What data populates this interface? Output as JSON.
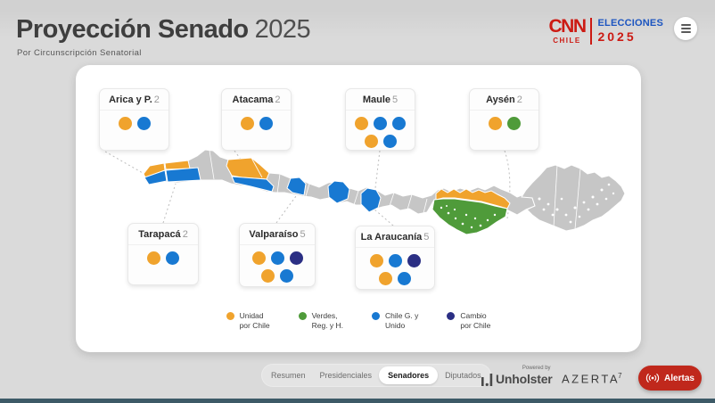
{
  "header": {
    "title": "Proyección Senado",
    "year": "2025",
    "subtitle": "Por Circunscripción Senatorial",
    "brand": {
      "cnn": "CNN",
      "chile": "CHILE",
      "elecciones": "ELECCIONES",
      "year": "2025"
    }
  },
  "regions": [
    {
      "name": "Arica y P.",
      "seats": "2",
      "dots": [
        "orange",
        "blue"
      ]
    },
    {
      "name": "Atacama",
      "seats": "2",
      "dots": [
        "orange",
        "blue"
      ]
    },
    {
      "name": "Maule",
      "seats": "5",
      "dots": [
        "orange",
        "blue",
        "blue",
        "orange",
        "blue"
      ]
    },
    {
      "name": "Aysén",
      "seats": "2",
      "dots": [
        "orange",
        "green"
      ]
    },
    {
      "name": "Tarapacá",
      "seats": "2",
      "dots": [
        "orange",
        "blue"
      ]
    },
    {
      "name": "Valparaíso",
      "seats": "5",
      "dots": [
        "orange",
        "blue",
        "navy",
        "orange",
        "blue"
      ]
    },
    {
      "name": "La Araucanía",
      "seats": "5",
      "dots": [
        "orange",
        "blue",
        "navy",
        "orange",
        "blue"
      ]
    }
  ],
  "legend": [
    {
      "color": "orange",
      "line1": "Unidad",
      "line2": "por Chile"
    },
    {
      "color": "green",
      "line1": "Verdes,",
      "line2": "Reg. y H."
    },
    {
      "color": "blue",
      "line1": "Chile G. y",
      "line2": "Unido"
    },
    {
      "color": "navy",
      "line1": "Cambio",
      "line2": "por Chile"
    }
  ],
  "party_colors": {
    "orange": "#F0A32D",
    "blue": "#1879D2",
    "green": "#4F9B3A",
    "navy": "#2B2F84"
  },
  "map": {
    "gray": "#C6C6C6"
  },
  "tabs": [
    {
      "label": "Resumen",
      "active": false
    },
    {
      "label": "Presidenciales",
      "active": false
    },
    {
      "label": "Senadores",
      "active": true
    },
    {
      "label": "Diputados",
      "active": false
    }
  ],
  "footer": {
    "powered_by": "Powered by",
    "unholster": "Unholster",
    "azerta": "AZERTA",
    "azerta_mark": "7",
    "alerts": "Alertas"
  }
}
